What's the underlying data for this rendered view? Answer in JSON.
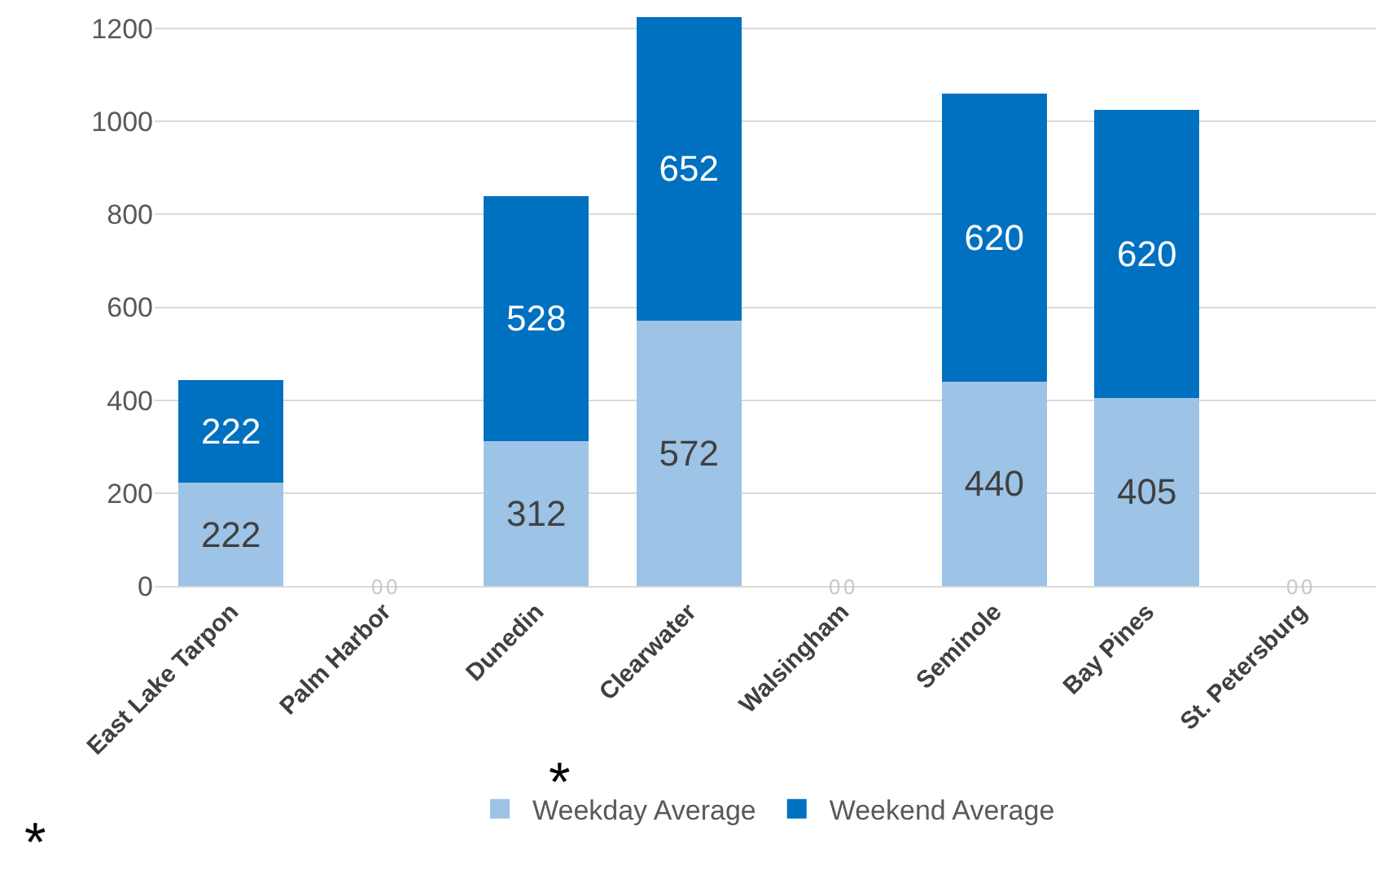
{
  "chart_data": {
    "type": "bar",
    "stacked": true,
    "categories": [
      "East Lake Tarpon",
      "Palm Harbor",
      "Dunedin",
      "Clearwater",
      "Walsingham",
      "Seminole",
      "Bay Pines",
      "St. Petersburg"
    ],
    "series": [
      {
        "name": "Weekday Average",
        "color": "#9dc3e6",
        "values": [
          222,
          0,
          312,
          572,
          0,
          440,
          405,
          0
        ]
      },
      {
        "name": "Weekend Average",
        "color": "#0070c0",
        "values": [
          222,
          0,
          528,
          652,
          0,
          620,
          620,
          0
        ]
      }
    ],
    "ylim": [
      0,
      1230
    ],
    "yticks": [
      0,
      200,
      400,
      600,
      800,
      1000,
      1200
    ],
    "grid": "y",
    "legend": "bottom",
    "data_labels": true,
    "annotations": [
      "*",
      "*"
    ]
  }
}
